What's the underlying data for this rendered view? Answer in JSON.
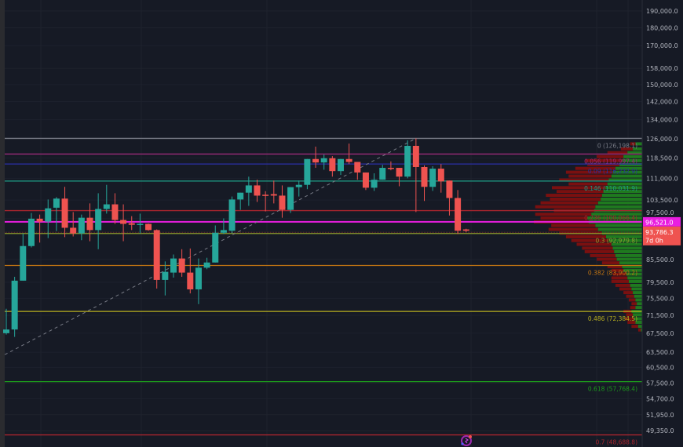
{
  "chart_data": {
    "type": "candlestick",
    "y_scale": "log",
    "ylim": [
      47500,
      200000
    ],
    "grid": true,
    "y_ticks": [
      "190,000.0",
      "180,000.0",
      "170,000.0",
      "158,000.0",
      "150,000.0",
      "142,000.0",
      "134,000.0",
      "126,000.0",
      "118,500.0",
      "111,000.0",
      "103,500.0",
      "97,500.0",
      "85,500.0",
      "79,500.0",
      "75,500.0",
      "71,500.0",
      "67,500.0",
      "63,500.0",
      "60,500.0",
      "57,500.0",
      "54,700.0",
      "51,950.0",
      "49,350.0"
    ],
    "candles": [
      [
        67500,
        73000,
        67200,
        68300
      ],
      [
        68300,
        80900,
        66700,
        79900
      ],
      [
        79900,
        93000,
        79900,
        89300
      ],
      [
        89300,
        99300,
        88900,
        97500
      ],
      [
        97500,
        98800,
        90300,
        96600
      ],
      [
        96600,
        103700,
        91600,
        100800
      ],
      [
        101000,
        104500,
        93700,
        104000
      ],
      [
        104000,
        108000,
        91900,
        94700
      ],
      [
        94700,
        99600,
        92100,
        93000
      ],
      [
        93000,
        98800,
        91000,
        97800
      ],
      [
        97800,
        102400,
        90700,
        94000
      ],
      [
        94000,
        105800,
        88400,
        100600
      ],
      [
        100600,
        108700,
        99100,
        102100
      ],
      [
        102100,
        105800,
        95900,
        97100
      ],
      [
        97100,
        102100,
        90700,
        95900
      ],
      [
        96100,
        98300,
        94000,
        95600
      ],
      [
        95700,
        99100,
        93000,
        95900
      ],
      [
        95900,
        96000,
        93800,
        94000
      ],
      [
        94000,
        94200,
        77900,
        80100
      ],
      [
        80100,
        85000,
        76200,
        82200
      ],
      [
        82000,
        86900,
        80700,
        85800
      ],
      [
        85800,
        88400,
        80900,
        82000
      ],
      [
        82000,
        88600,
        76700,
        77700
      ],
      [
        77700,
        85800,
        74100,
        83300
      ],
      [
        83300,
        86000,
        82900,
        84700
      ],
      [
        84700,
        95400,
        84700,
        93200
      ],
      [
        93200,
        97600,
        92800,
        94000
      ],
      [
        93800,
        104700,
        93000,
        103700
      ],
      [
        103700,
        106000,
        100300,
        106000
      ],
      [
        106000,
        111600,
        101600,
        108500
      ],
      [
        108500,
        110500,
        102900,
        105000
      ],
      [
        105300,
        106500,
        99800,
        105200
      ],
      [
        105500,
        110200,
        102400,
        105000
      ],
      [
        105000,
        108500,
        97800,
        100300
      ],
      [
        100300,
        107900,
        99300,
        107900
      ],
      [
        107900,
        110200,
        104700,
        108700
      ],
      [
        108700,
        118100,
        107200,
        118100
      ],
      [
        118100,
        122900,
        114800,
        116800
      ],
      [
        116800,
        119800,
        114100,
        118400
      ],
      [
        118400,
        119200,
        111600,
        113600
      ],
      [
        113600,
        118100,
        112200,
        118100
      ],
      [
        118100,
        124100,
        116200,
        117000
      ],
      [
        117000,
        117000,
        110500,
        113100
      ],
      [
        113100,
        113100,
        106900,
        107700
      ],
      [
        107700,
        112800,
        106600,
        110500
      ],
      [
        110500,
        115900,
        110500,
        114800
      ],
      [
        114800,
        117200,
        113900,
        114500
      ],
      [
        114800,
        114800,
        108200,
        111600
      ],
      [
        111600,
        125400,
        111000,
        123200
      ],
      [
        123200,
        126200,
        99600,
        115100
      ],
      [
        115100,
        115700,
        103200,
        108000
      ],
      [
        108000,
        115400,
        106600,
        114500
      ],
      [
        114500,
        116200,
        106000,
        109900
      ],
      [
        110200,
        110200,
        98500,
        104200
      ],
      [
        104200,
        106900,
        92800,
        93800
      ],
      [
        94200,
        94400,
        93400,
        93786.3
      ]
    ],
    "candle_fields": [
      "open",
      "high",
      "low",
      "close"
    ],
    "colors": {
      "up": "#26a69a",
      "down": "#ef5350"
    },
    "fib_levels": [
      {
        "label": "0 (126,198.1)",
        "price": 126198.1,
        "color": "#787b86"
      },
      {
        "label": "0.056 (119,997.4)",
        "price": 119997.4,
        "color": "#9a2a78"
      },
      {
        "label": "0.09 (116,232.9)",
        "price": 116232.9,
        "color": "#2a2fa8"
      },
      {
        "label": "0.146 (110,031.9)",
        "price": 110031.9,
        "color": "#1f9e86"
      },
      {
        "label": "0.236 (100,066.4)",
        "price": 100066.4,
        "color": "#a8252e"
      },
      {
        "label": "0.3 (92,979.8)",
        "price": 92979.8,
        "color": "#8c9a2c"
      },
      {
        "label": "0.382 (83,900.2)",
        "price": 83900.2,
        "color": "#c27512"
      },
      {
        "label": "0.486 (72,384.5)",
        "price": 72384.5,
        "color": "#b8b020"
      },
      {
        "label": "0.618 (57,768.4)",
        "price": 57768.4,
        "color": "#1c9a1c"
      },
      {
        "label": "0.7 (48,688.8)",
        "price": 48688.8,
        "color": "#a8252e"
      }
    ],
    "price_line": {
      "label": "96,521.0",
      "price": 96521.0,
      "color": "#e91ee0"
    },
    "last_price": {
      "label": "93,786.3",
      "countdown": "7d 0h",
      "price": 93786.3,
      "color": "#ef5350"
    },
    "trend_line": {
      "from_price": 63000,
      "to_price": 126198.1
    },
    "volume_profile": {
      "up_color": "#1f7a1f",
      "down_color": "#7a1010",
      "rows": [
        [
          124000,
          10,
          8
        ],
        [
          122000,
          14,
          18
        ],
        [
          120500,
          22,
          30
        ],
        [
          119000,
          28,
          40
        ],
        [
          117500,
          30,
          55
        ],
        [
          116000,
          34,
          48
        ],
        [
          114600,
          40,
          60
        ],
        [
          113200,
          44,
          70
        ],
        [
          111800,
          46,
          64
        ],
        [
          110400,
          50,
          74
        ],
        [
          109000,
          52,
          58
        ],
        [
          107700,
          55,
          80
        ],
        [
          106400,
          58,
          70
        ],
        [
          105100,
          60,
          84
        ],
        [
          103800,
          62,
          76
        ],
        [
          102600,
          66,
          86
        ],
        [
          101300,
          70,
          90
        ],
        [
          100100,
          72,
          60
        ],
        [
          98900,
          76,
          84
        ],
        [
          97700,
          82,
          70
        ],
        [
          96500,
          80,
          82
        ],
        [
          95400,
          70,
          66
        ],
        [
          94200,
          66,
          74
        ],
        [
          93100,
          60,
          64
        ],
        [
          92000,
          54,
          60
        ],
        [
          90900,
          50,
          56
        ],
        [
          89800,
          46,
          52
        ],
        [
          88700,
          44,
          46
        ],
        [
          87700,
          42,
          44
        ],
        [
          86600,
          40,
          38
        ],
        [
          85600,
          38,
          30
        ],
        [
          84600,
          34,
          26
        ],
        [
          83600,
          30,
          22
        ],
        [
          82600,
          28,
          18
        ],
        [
          81600,
          24,
          20
        ],
        [
          80600,
          22,
          24
        ],
        [
          79700,
          20,
          26
        ],
        [
          78700,
          18,
          22
        ],
        [
          77800,
          16,
          18
        ],
        [
          76900,
          14,
          14
        ],
        [
          76000,
          12,
          12
        ],
        [
          75100,
          10,
          10
        ],
        [
          74200,
          8,
          8
        ],
        [
          73300,
          10,
          8
        ],
        [
          72400,
          16,
          12
        ],
        [
          71600,
          14,
          10
        ],
        [
          70700,
          12,
          14
        ],
        [
          69900,
          10,
          12
        ],
        [
          69000,
          6,
          10
        ],
        [
          68200,
          2,
          4
        ]
      ]
    }
  }
}
